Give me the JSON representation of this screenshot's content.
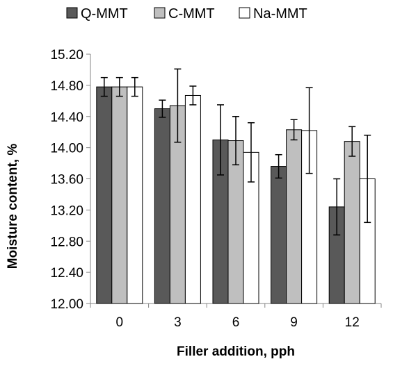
{
  "chart_data": {
    "type": "bar",
    "title": "",
    "xlabel": "Filler addition, pph",
    "ylabel": "Moisture content, %",
    "categories": [
      "0",
      "3",
      "6",
      "9",
      "12"
    ],
    "ylim": [
      12.0,
      15.2
    ],
    "yticks": [
      "12.00",
      "12.40",
      "12.80",
      "13.20",
      "13.60",
      "14.00",
      "14.40",
      "14.80",
      "15.20"
    ],
    "grid": false,
    "legend_position": "top",
    "error_bars": true,
    "series": [
      {
        "name": "Q-MMT",
        "color": "#595959",
        "values": [
          14.78,
          14.5,
          14.1,
          13.76,
          13.24
        ],
        "errors": [
          0.12,
          0.11,
          0.45,
          0.15,
          0.36
        ]
      },
      {
        "name": "C-MMT",
        "color": "#bfbfbf",
        "values": [
          14.78,
          14.54,
          14.09,
          14.23,
          14.08
        ],
        "errors": [
          0.12,
          0.47,
          0.31,
          0.13,
          0.19
        ]
      },
      {
        "name": "Na-MMT",
        "color": "#ffffff",
        "values": [
          14.78,
          14.67,
          13.94,
          14.22,
          13.6
        ],
        "errors": [
          0.12,
          0.12,
          0.38,
          0.55,
          0.56
        ]
      }
    ]
  }
}
